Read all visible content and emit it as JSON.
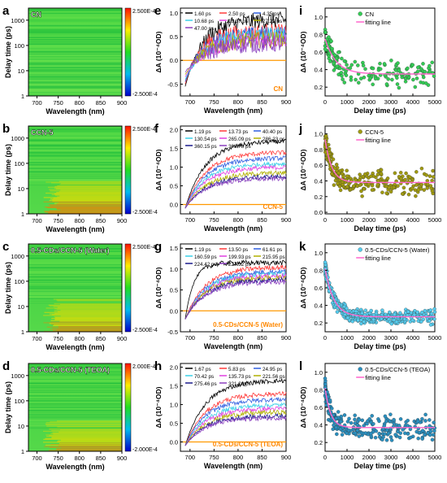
{
  "colors": {
    "heat_low": "#0000cc",
    "heat_mid": "#00cc44",
    "heat_high": "#ff2200",
    "fit_line": "#ff66cc",
    "scatter_cn": "#33cc55",
    "scatter_ccn5": "#a09a10",
    "scatter_water": "#55ccee",
    "scatter_teoa": "#2a8fbf",
    "zero_line": "#ff9900"
  },
  "chart_data": [
    {
      "panel": "a",
      "type": "heatmap",
      "sample_label": "CN",
      "xlabel": "Wavelength (nm)",
      "ylabel": "Delay time (ps)",
      "x_ticks": [
        "700",
        "750",
        "800",
        "850",
        "900"
      ],
      "y_ticks": [
        "1",
        "10",
        "100",
        "1000"
      ],
      "y_scale": "log",
      "colorbar_max": "2.500E-4",
      "colorbar_min": "-2.500E-4",
      "intensity": 0.15
    },
    {
      "panel": "b",
      "type": "heatmap",
      "sample_label": "CCN-5",
      "xlabel": "Wavelength (nm)",
      "ylabel": "Delay time (ps)",
      "x_ticks": [
        "700",
        "750",
        "800",
        "850",
        "900"
      ],
      "y_ticks": [
        "1",
        "10",
        "100",
        "1000"
      ],
      "y_scale": "log",
      "colorbar_max": "2.500E-4",
      "colorbar_min": "-2.500E-4",
      "intensity": 0.85
    },
    {
      "panel": "c",
      "type": "heatmap",
      "sample_label": "0.5-CDs/CCN-5 (Water)",
      "xlabel": "Wavelength (nm)",
      "ylabel": "Delay time (ps)",
      "x_ticks": [
        "700",
        "750",
        "800",
        "850",
        "900"
      ],
      "y_ticks": [
        "1",
        "10",
        "100",
        "1000"
      ],
      "y_scale": "log",
      "colorbar_max": "2.500E-4",
      "colorbar_min": "-2.500E-4",
      "intensity": 0.75
    },
    {
      "panel": "d",
      "type": "heatmap",
      "sample_label": "0.5-CDs/CCN-5 (TEOA)",
      "xlabel": "Wavelength (nm)",
      "ylabel": "Delay time (ps)",
      "x_ticks": [
        "700",
        "750",
        "800",
        "850",
        "900"
      ],
      "y_ticks": [
        "1",
        "10",
        "100",
        "1000"
      ],
      "y_scale": "log",
      "colorbar_max": "2.000E-4",
      "colorbar_min": "-2.000E-4",
      "intensity": 0.7
    },
    {
      "panel": "e",
      "type": "line",
      "sample_label": "CN",
      "xlabel": "Wavelength (nm)",
      "ylabel": "ΔA (10⁻⁴OD)",
      "xlim": [
        680,
        900
      ],
      "ylim": [
        -0.75,
        1.1
      ],
      "x_ticks": [
        700,
        750,
        800,
        850,
        900
      ],
      "y_ticks": [
        -0.5,
        0.0,
        0.5,
        1.0
      ],
      "series": [
        {
          "name": "1.60 ps",
          "color": "#000000",
          "start": -0.55,
          "end": 0.85,
          "rise": 6
        },
        {
          "name": "2.50 ps",
          "color": "#ff3b3b",
          "start": -0.5,
          "end": 0.6,
          "rise": 7
        },
        {
          "name": "4.35 ps",
          "color": "#2f5fe0",
          "start": -0.45,
          "end": 0.55,
          "rise": 6
        },
        {
          "name": "10.68 ps",
          "color": "#3bd0e8",
          "start": -0.4,
          "end": 0.55,
          "rise": 5
        },
        {
          "name": "19.37 ps",
          "color": "#e040e0",
          "start": -0.35,
          "end": 0.45,
          "rise": 5
        },
        {
          "name": "27.22 ps",
          "color": "#b0b000",
          "start": -0.3,
          "end": 0.45,
          "rise": 5
        },
        {
          "name": "47.00 ps",
          "color": "#8a3fbf",
          "start": -0.25,
          "end": 0.35,
          "rise": 5
        }
      ]
    },
    {
      "panel": "f",
      "type": "line",
      "sample_label": "CCN-5",
      "xlabel": "Wavelength (nm)",
      "ylabel": "ΔA (10⁻⁴OD)",
      "xlim": [
        680,
        900
      ],
      "ylim": [
        -0.25,
        2.1
      ],
      "x_ticks": [
        700,
        750,
        800,
        850,
        900
      ],
      "y_ticks": [
        0.0,
        0.5,
        1.0,
        1.5,
        2.0
      ],
      "series": [
        {
          "name": "1.19 ps",
          "color": "#000000",
          "start": -0.1,
          "end": 1.7,
          "rise": 5
        },
        {
          "name": "13.73 ps",
          "color": "#ff3b3b",
          "start": -0.1,
          "end": 1.4,
          "rise": 5
        },
        {
          "name": "40.40 ps",
          "color": "#2f5fe0",
          "start": -0.1,
          "end": 1.25,
          "rise": 5
        },
        {
          "name": "130.54 ps",
          "color": "#3bd0e8",
          "start": -0.1,
          "end": 1.1,
          "rise": 5
        },
        {
          "name": "265.09 ps",
          "color": "#e040e0",
          "start": -0.1,
          "end": 1.0,
          "rise": 5
        },
        {
          "name": "286.23 ps",
          "color": "#b0b000",
          "start": -0.1,
          "end": 0.85,
          "rise": 5
        },
        {
          "name": "360.15 ps",
          "color": "#1a1a8c",
          "start": -0.1,
          "end": 0.75,
          "rise": 5
        },
        {
          "name": "398.78 ps",
          "color": "#8a3fbf",
          "start": -0.1,
          "end": 0.7,
          "rise": 5
        }
      ]
    },
    {
      "panel": "g",
      "type": "line",
      "sample_label": "0.5-CDs/CCN-5 (Water)",
      "xlabel": "Wavelength (nm)",
      "ylabel": "ΔA (10⁻⁴OD)",
      "xlim": [
        680,
        900
      ],
      "ylim": [
        -0.5,
        1.6
      ],
      "x_ticks": [
        700,
        750,
        800,
        850,
        900
      ],
      "y_ticks": [
        -0.5,
        0.0,
        0.5,
        1.0,
        1.5
      ],
      "series": [
        {
          "name": "1.19 ps",
          "color": "#000000",
          "start": -0.2,
          "end": 1.15,
          "rise": 12
        },
        {
          "name": "13.50 ps",
          "color": "#ff3b3b",
          "start": -0.2,
          "end": 1.05,
          "rise": 5
        },
        {
          "name": "61.61 ps",
          "color": "#2f5fe0",
          "start": -0.2,
          "end": 0.95,
          "rise": 5
        },
        {
          "name": "160.59 ps",
          "color": "#3bd0e8",
          "start": -0.2,
          "end": 0.9,
          "rise": 5
        },
        {
          "name": "199.93 ps",
          "color": "#e040e0",
          "start": -0.2,
          "end": 0.85,
          "rise": 5
        },
        {
          "name": "215.95 ps",
          "color": "#b0b000",
          "start": -0.2,
          "end": 0.8,
          "rise": 5
        },
        {
          "name": "224.42 ps",
          "color": "#1a1a8c",
          "start": -0.2,
          "end": 0.75,
          "rise": 5
        },
        {
          "name": "227.32 ps",
          "color": "#8a3fbf",
          "start": -0.2,
          "end": 0.7,
          "rise": 5
        }
      ]
    },
    {
      "panel": "h",
      "type": "line",
      "sample_label": "0.5-CDs/CCN-5 (TEOA)",
      "xlabel": "Wavelength (nm)",
      "ylabel": "ΔA (10⁻⁴OD)",
      "xlim": [
        680,
        900
      ],
      "ylim": [
        -0.25,
        2.1
      ],
      "x_ticks": [
        700,
        750,
        800,
        850,
        900
      ],
      "y_ticks": [
        0.0,
        0.5,
        1.0,
        1.5,
        2.0
      ],
      "series": [
        {
          "name": "1.67 ps",
          "color": "#000000",
          "start": -0.1,
          "end": 1.65,
          "rise": 5
        },
        {
          "name": "5.83 ps",
          "color": "#ff3b3b",
          "start": -0.1,
          "end": 1.3,
          "rise": 5
        },
        {
          "name": "24.95 ps",
          "color": "#2f5fe0",
          "start": -0.1,
          "end": 1.15,
          "rise": 5
        },
        {
          "name": "70.42 ps",
          "color": "#3bd0e8",
          "start": -0.1,
          "end": 1.0,
          "rise": 5
        },
        {
          "name": "135.73 ps",
          "color": "#e040e0",
          "start": -0.1,
          "end": 0.9,
          "rise": 5
        },
        {
          "name": "221.56 ps",
          "color": "#b0b000",
          "start": -0.1,
          "end": 0.8,
          "rise": 5
        },
        {
          "name": "275.46 ps",
          "color": "#1a1a8c",
          "start": -0.1,
          "end": 0.7,
          "rise": 5
        },
        {
          "name": "321.09 ps",
          "color": "#8a3fbf",
          "start": -0.1,
          "end": 0.65,
          "rise": 5
        }
      ]
    },
    {
      "panel": "i",
      "type": "scatter",
      "sample_label": "CN",
      "xlabel": "Delay time (ps)",
      "ylabel": "ΔA (10⁻⁴OD)",
      "xlim": [
        0,
        5000
      ],
      "ylim": [
        0.1,
        1.1
      ],
      "x_ticks": [
        0,
        1000,
        2000,
        3000,
        4000,
        5000
      ],
      "y_ticks": [
        0.2,
        0.4,
        0.6,
        0.8,
        1.0
      ],
      "legend": [
        "CN",
        "fitting line"
      ],
      "fit": {
        "a": 0.35,
        "b": 0.4,
        "tau": 500
      },
      "noise": 0.22
    },
    {
      "panel": "j",
      "type": "scatter",
      "sample_label": "CCN-5",
      "xlabel": "Delay time (ps)",
      "ylabel": "ΔA (10⁻⁴OD)",
      "xlim": [
        0,
        5000
      ],
      "ylim": [
        -0.02,
        1.1
      ],
      "x_ticks": [
        0,
        1000,
        2000,
        3000,
        4000,
        5000
      ],
      "y_ticks": [
        0.0,
        0.2,
        0.4,
        0.6,
        0.8,
        1.0
      ],
      "legend": [
        "CCN-5",
        "fitting line"
      ],
      "fit": {
        "a": 0.38,
        "b": 0.55,
        "tau": 300
      },
      "noise": 0.25
    },
    {
      "panel": "k",
      "type": "scatter",
      "sample_label": "0.5-CDs/CCN-5 (Water)",
      "xlabel": "Delay time (ps)",
      "ylabel": "ΔA (10⁻⁴OD)",
      "xlim": [
        0,
        5000
      ],
      "ylim": [
        0.1,
        1.1
      ],
      "x_ticks": [
        0,
        1000,
        2000,
        3000,
        4000,
        5000
      ],
      "y_ticks": [
        0.2,
        0.4,
        0.6,
        0.8,
        1.0
      ],
      "legend": [
        "0.5-CDs/CCN-5 (Water)",
        "fitting line"
      ],
      "fit": {
        "a": 0.27,
        "b": 0.55,
        "tau": 400
      },
      "noise": 0.12
    },
    {
      "panel": "l",
      "type": "scatter",
      "sample_label": "0.5-CDs/CCN-5 (TEOA)",
      "xlabel": "Delay time (ps)",
      "ylabel": "ΔA (10⁻⁴OD)",
      "xlim": [
        0,
        5000
      ],
      "ylim": [
        0.1,
        1.1
      ],
      "x_ticks": [
        0,
        1000,
        2000,
        3000,
        4000,
        5000
      ],
      "y_ticks": [
        0.2,
        0.4,
        0.6,
        0.8,
        1.0
      ],
      "legend": [
        "0.5-CDs/CCN-5 (TEOA)",
        "fitting line"
      ],
      "fit": {
        "a": 0.37,
        "b": 0.45,
        "tau": 250
      },
      "noise": 0.2
    }
  ]
}
